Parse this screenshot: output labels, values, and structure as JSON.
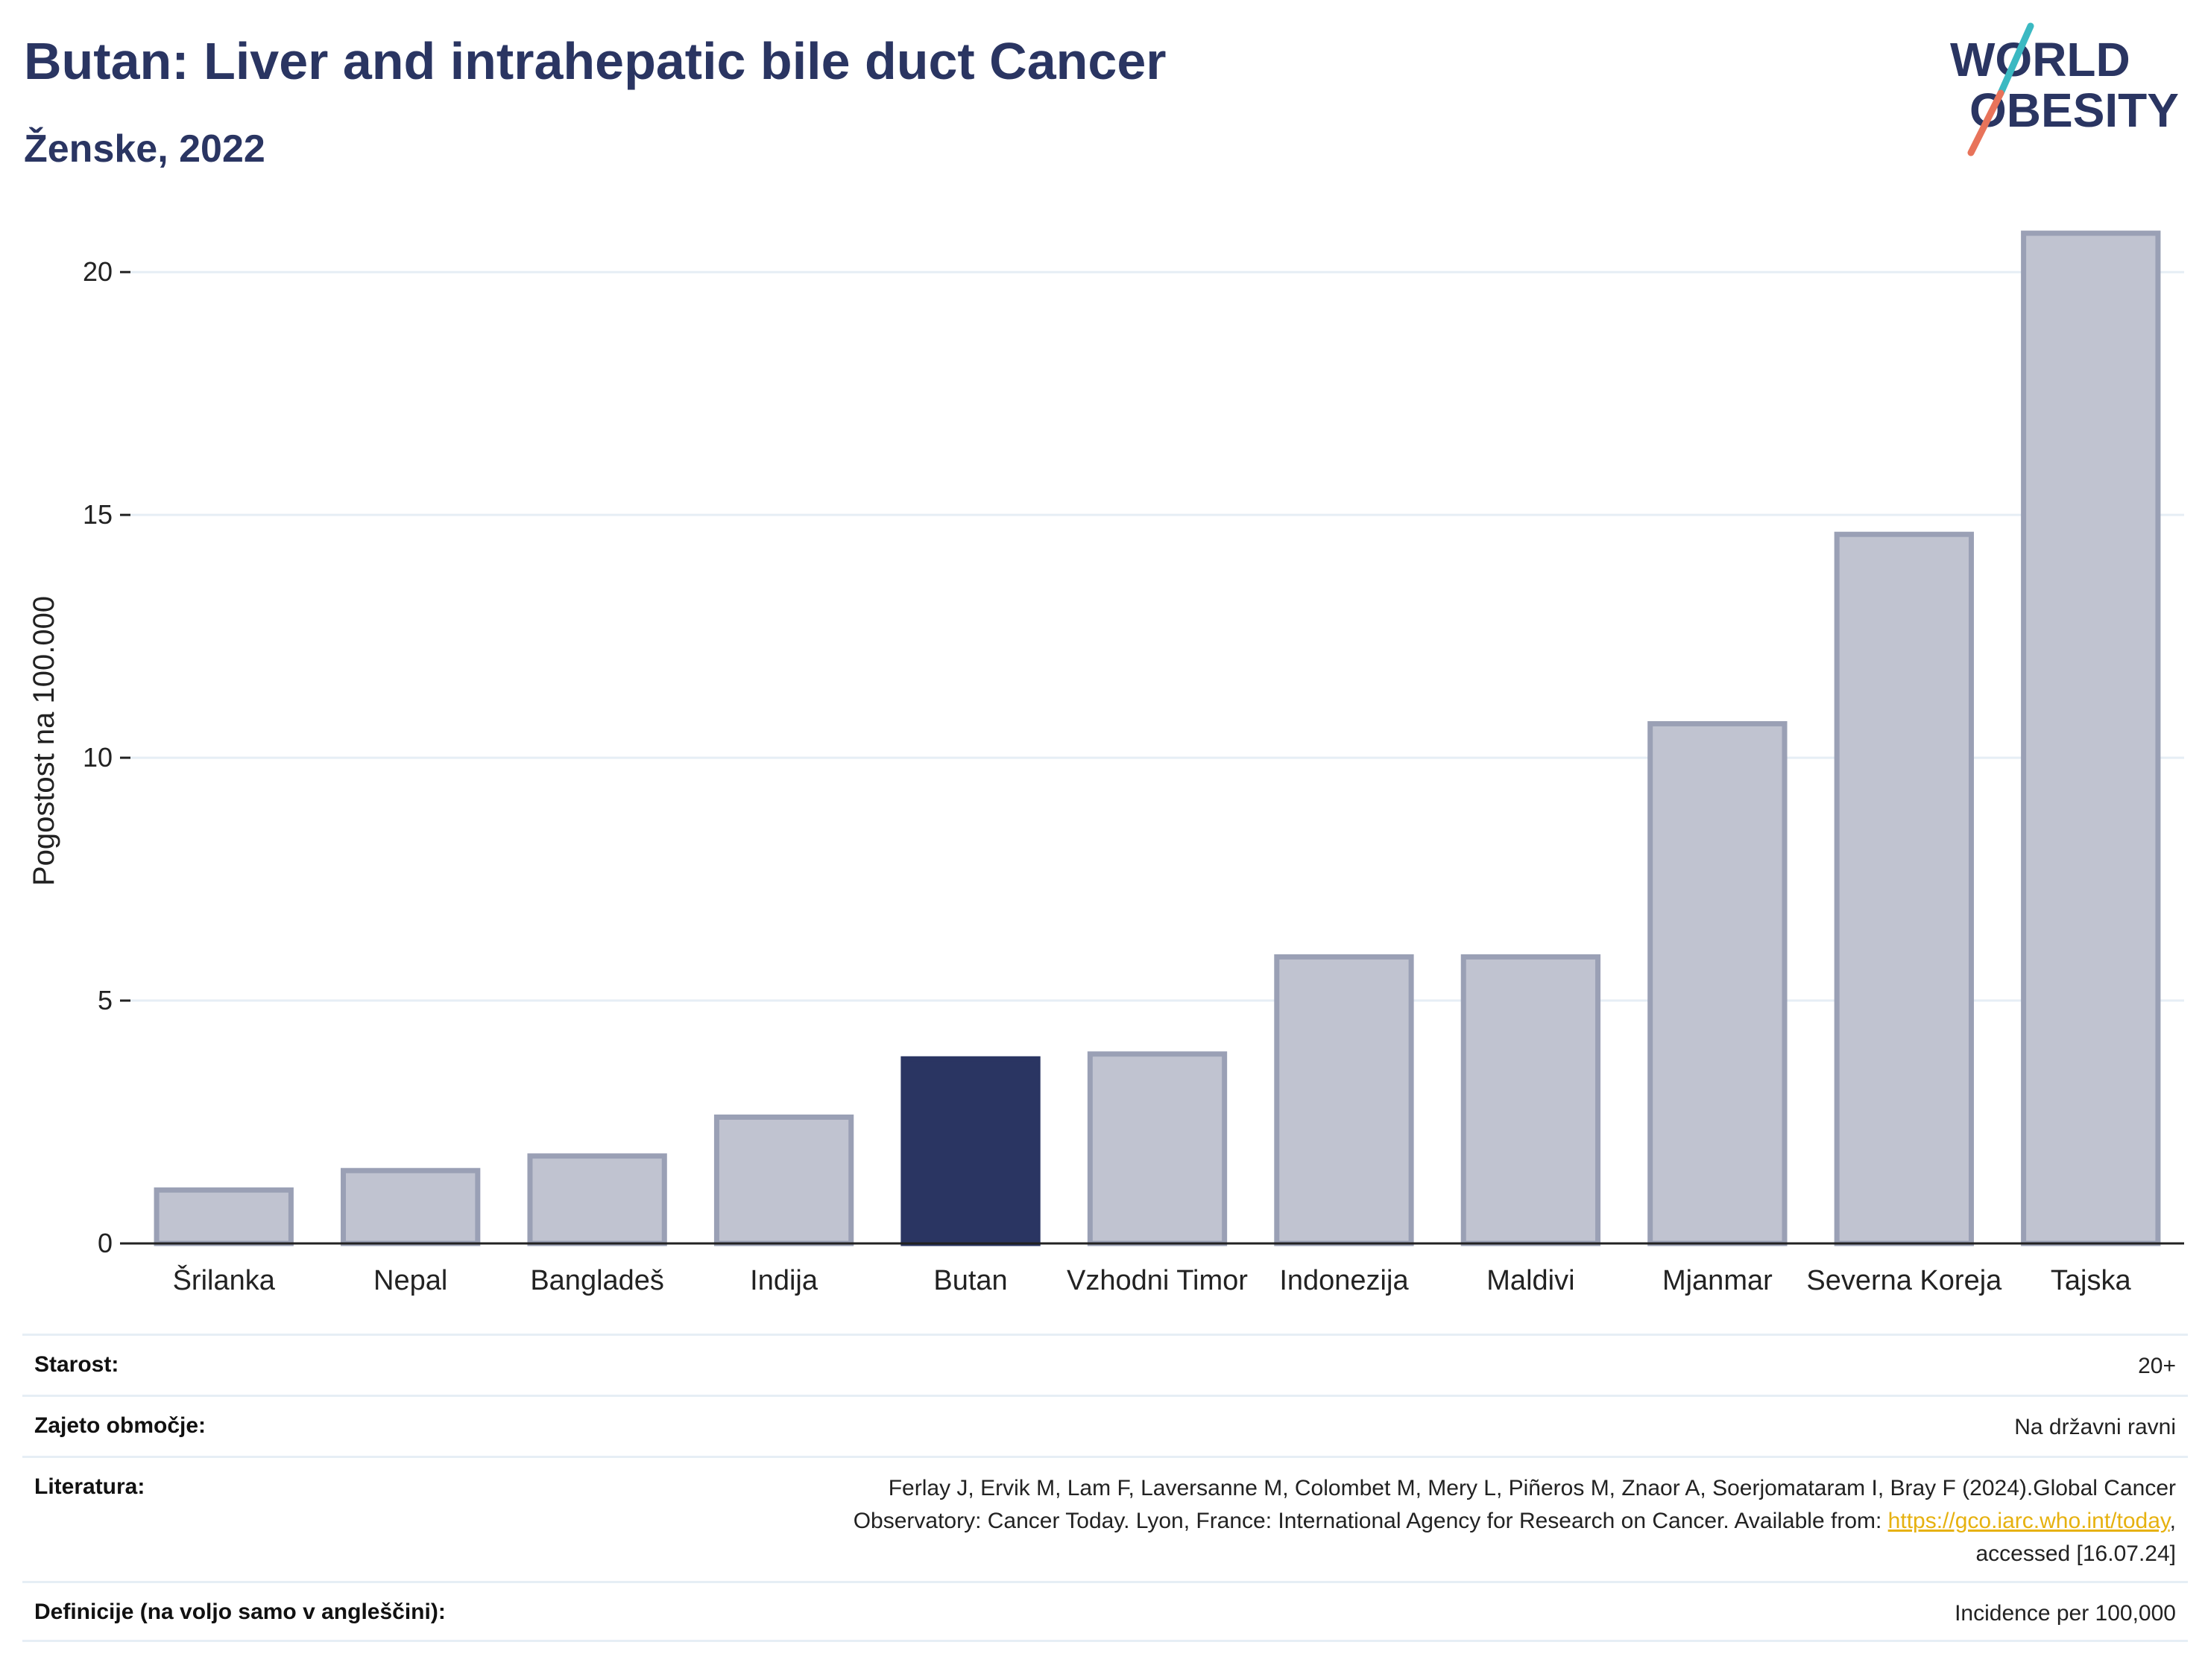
{
  "header": {
    "title": "Butan: Liver and intrahepatic bile duct Cancer",
    "subtitle": "Ženske, 2022"
  },
  "logo": {
    "line1": "WORLD",
    "line2": "OBESITY",
    "colors": {
      "text": "#2a3562",
      "slash_top": "#3bb9c2",
      "slash_bottom": "#e8735a"
    }
  },
  "chart_data": {
    "type": "bar",
    "title": "",
    "xlabel": "",
    "ylabel": "Pogostost na 100.000",
    "ylim": [
      0,
      21
    ],
    "yticks": [
      0,
      5,
      10,
      15,
      20
    ],
    "grid": true,
    "categories": [
      "Šrilanka",
      "Nepal",
      "Bangladeš",
      "Indija",
      "Butan",
      "Vzhodni Timor",
      "Indonezija",
      "Maldivi",
      "Mjanmar",
      "Severna Koreja",
      "Tajska"
    ],
    "values": [
      1.1,
      1.5,
      1.8,
      2.6,
      3.8,
      3.9,
      5.9,
      5.9,
      10.7,
      14.6,
      20.8
    ],
    "highlight": "Butan",
    "colors": {
      "highlight": "#2a3562",
      "bar_fill": "#c0c3d0",
      "bar_stroke": "#9aa0b5",
      "grid": "#e6eef5",
      "axis": "#222222"
    }
  },
  "meta": {
    "age_label": "Starost:",
    "age_value": "20+",
    "area_label": "Zajeto območje:",
    "area_value": "Na državni ravni",
    "lit_label": "Literatura:",
    "lit_line1": "Ferlay J, Ervik M, Lam F, Laversanne M, Colombet M, Mery L, Piñeros M, Znaor A, Soerjomataram I, Bray F (2024).Global Cancer",
    "lit_line2_text": "Observatory: Cancer Today. Lyon, France: International Agency for Research on Cancer. Available from: ",
    "lit_link": "https://gco.iarc.who.int/today",
    "lit_line2_tail": ",",
    "lit_line3": "accessed [16.07.24]",
    "def_label": "Definicije (na voljo samo v angleščini):",
    "def_value": "Incidence per 100,000"
  }
}
